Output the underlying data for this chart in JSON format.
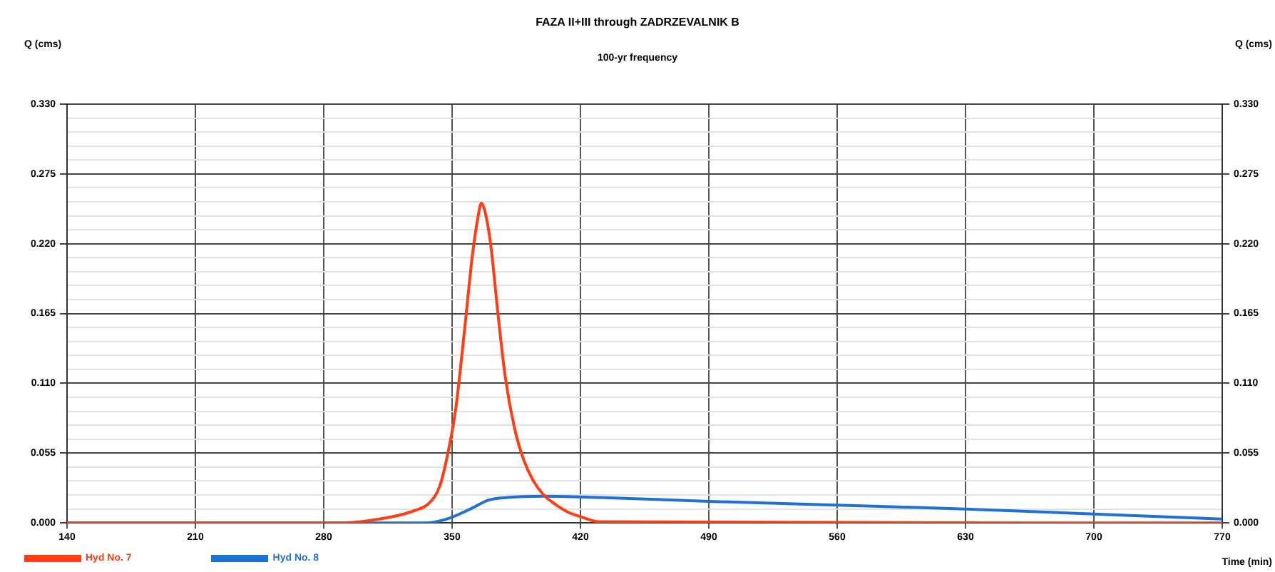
{
  "chart_data": {
    "type": "line",
    "title": "FAZA II+III through ZADRZEVALNIK B",
    "subtitle": "100-yr frequency",
    "xlabel": "Time (min)",
    "ylabel": "Q (cms)",
    "y2label": "Q (cms)",
    "xlim": [
      140,
      770
    ],
    "xticks": [
      140,
      210,
      280,
      350,
      420,
      490,
      560,
      630,
      700,
      770
    ],
    "ylim": [
      0,
      0.33
    ],
    "yticks": [
      {
        "value": 0,
        "label": "0.000"
      },
      {
        "value": 0.011,
        "label": null
      },
      {
        "value": 0.022,
        "label": null
      },
      {
        "value": 0.033,
        "label": null
      },
      {
        "value": 0.044,
        "label": null
      },
      {
        "value": 0.055,
        "label": "0.055"
      },
      {
        "value": 0.066,
        "label": null
      },
      {
        "value": 0.077,
        "label": null
      },
      {
        "value": 0.088,
        "label": null
      },
      {
        "value": 0.099,
        "label": null
      },
      {
        "value": 0.11,
        "label": "0.110"
      },
      {
        "value": 0.121,
        "label": null
      },
      {
        "value": 0.132,
        "label": null
      },
      {
        "value": 0.143,
        "label": null
      },
      {
        "value": 0.154,
        "label": null
      },
      {
        "value": 0.165,
        "label": "0.165"
      },
      {
        "value": 0.176,
        "label": null
      },
      {
        "value": 0.187,
        "label": null
      },
      {
        "value": 0.198,
        "label": null
      },
      {
        "value": 0.209,
        "label": null
      },
      {
        "value": 0.22,
        "label": "0.220"
      },
      {
        "value": 0.231,
        "label": null
      },
      {
        "value": 0.242,
        "label": null
      },
      {
        "value": 0.253,
        "label": null
      },
      {
        "value": 0.264,
        "label": null
      },
      {
        "value": 0.275,
        "label": "0.275"
      },
      {
        "value": 0.286,
        "label": null
      },
      {
        "value": 0.297,
        "label": null
      },
      {
        "value": 0.308,
        "label": null
      },
      {
        "value": 0.319,
        "label": null
      },
      {
        "value": 0.33,
        "label": "0.330"
      }
    ],
    "y2lim": [
      0,
      0.33
    ],
    "y2ticks": [
      {
        "value": 0,
        "label": "0.000"
      },
      {
        "value": 0.055,
        "label": "0.055"
      },
      {
        "value": 0.11,
        "label": "0.110"
      },
      {
        "value": 0.165,
        "label": "0.165"
      },
      {
        "value": 0.22,
        "label": "0.220"
      },
      {
        "value": 0.275,
        "label": "0.275"
      },
      {
        "value": 0.33,
        "label": "0.330"
      }
    ],
    "grid": true,
    "legend": "bottom",
    "marker": "none",
    "line_style": "solid",
    "series": [
      {
        "name": "Hyd No. 7",
        "color": "#ff3d14",
        "x": [
          140,
          290,
          300,
          310,
          321,
          330,
          337,
          343,
          347,
          352,
          357,
          361,
          364,
          366,
          368,
          371,
          375,
          379,
          384,
          389,
          394,
          400,
          407,
          414,
          420,
          430,
          770
        ],
        "values": [
          0,
          0,
          0.001,
          0.003,
          0.006,
          0.01,
          0.015,
          0.028,
          0.05,
          0.09,
          0.155,
          0.21,
          0.24,
          0.252,
          0.245,
          0.22,
          0.165,
          0.115,
          0.075,
          0.05,
          0.034,
          0.022,
          0.014,
          0.008,
          0.005,
          0.001,
          0
        ]
      },
      {
        "name": "Hyd No. 8",
        "color": "#1f72d4",
        "x": [
          140,
          335,
          347,
          360,
          370,
          380,
          400,
          430,
          490,
          560,
          630,
          700,
          770
        ],
        "values": [
          0,
          0,
          0.003,
          0.011,
          0.018,
          0.02,
          0.021,
          0.02,
          0.017,
          0.014,
          0.011,
          0.007,
          0.003
        ]
      }
    ]
  }
}
